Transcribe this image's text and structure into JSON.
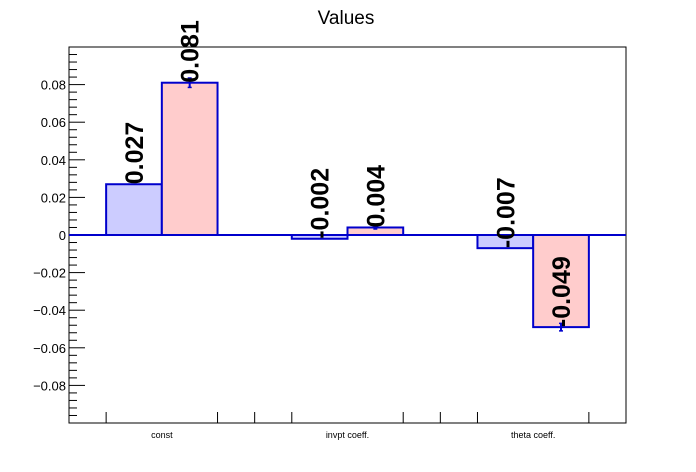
{
  "chart_data": {
    "type": "bar",
    "title": "Values",
    "xlabel": "",
    "ylabel": "",
    "categories": [
      "const",
      "invpt coeff.",
      "theta coeff."
    ],
    "ylim": [
      -0.1,
      0.1
    ],
    "yticks": [
      -0.08,
      -0.06,
      -0.04,
      -0.02,
      0,
      0.02,
      0.04,
      0.06,
      0.08
    ],
    "ytick_labels": [
      "−0.08",
      "−0.06",
      "−0.04",
      "−0.02",
      "0",
      "0.02",
      "0.04",
      "0.06",
      "0.08"
    ],
    "grid": false,
    "series": [
      {
        "values": [
          0.027,
          -0.002,
          -0.007
        ],
        "labels": [
          "0.027",
          "-0.002",
          "-0.007"
        ],
        "errors": [
          0,
          0,
          0
        ],
        "color": "#ccccff"
      },
      {
        "values": [
          0.081,
          0.004,
          -0.049
        ],
        "labels": [
          "0.081",
          "0.004",
          "-0.049"
        ],
        "errors": [
          0.0025,
          0.0008,
          0.002
        ],
        "color": "#ffcccc"
      }
    ],
    "colors": {
      "edge": "#0000cc",
      "axis": "#000000"
    }
  }
}
